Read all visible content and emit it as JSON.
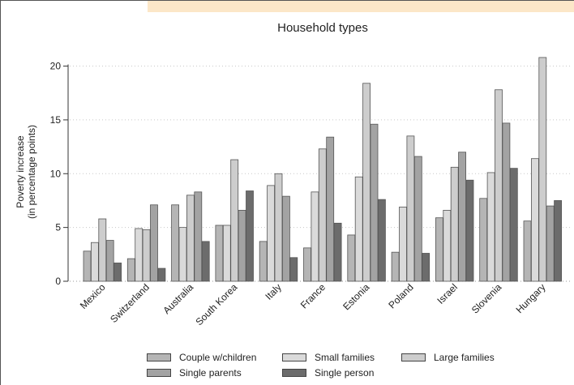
{
  "chart_data": {
    "type": "bar",
    "title": "Household types",
    "ylabel_line1": "Poverty increase",
    "ylabel_line2": "(in percentage points)",
    "xlabel": "",
    "ylim": [
      0,
      22
    ],
    "yticks": [
      0,
      5,
      10,
      15,
      20
    ],
    "grid": "horizontal dotted",
    "legend_position": "bottom",
    "categories": [
      "Mexico",
      "Switzerland",
      "Australia",
      "South Korea",
      "Italy",
      "France",
      "Estonia",
      "Poland",
      "Israel",
      "Slovenia",
      "Hungary"
    ],
    "series": [
      {
        "name": "Couple w/children",
        "color": "#b5b5b5",
        "values": [
          2.8,
          2.1,
          7.1,
          5.2,
          3.7,
          3.1,
          4.3,
          2.7,
          5.9,
          7.7,
          5.6
        ]
      },
      {
        "name": "Small families",
        "color": "#dadada",
        "values": [
          3.6,
          4.9,
          5.0,
          5.2,
          8.9,
          8.3,
          9.7,
          6.9,
          6.6,
          10.1,
          11.4
        ]
      },
      {
        "name": "Large families",
        "color": "#cdcdcd",
        "values": [
          5.8,
          4.8,
          8.0,
          11.3,
          10.0,
          12.3,
          18.4,
          13.5,
          10.6,
          17.8,
          20.8
        ]
      },
      {
        "name": "Single parents",
        "color": "#a3a3a3",
        "values": [
          3.8,
          7.1,
          8.3,
          6.6,
          7.9,
          13.4,
          14.6,
          11.6,
          12.0,
          14.7,
          7.0
        ]
      },
      {
        "name": "Single person",
        "color": "#6c6c6c",
        "values": [
          1.7,
          1.2,
          3.7,
          8.4,
          2.2,
          5.4,
          7.6,
          2.6,
          9.4,
          10.5,
          7.5
        ]
      }
    ]
  },
  "legend": {
    "items": [
      {
        "label": "Couple w/children",
        "color": "#b5b5b5"
      },
      {
        "label": "Small families",
        "color": "#dadada"
      },
      {
        "label": "Large families",
        "color": "#cdcdcd"
      },
      {
        "label": "Single parents",
        "color": "#a3a3a3"
      },
      {
        "label": "Single person",
        "color": "#6c6c6c"
      }
    ]
  }
}
